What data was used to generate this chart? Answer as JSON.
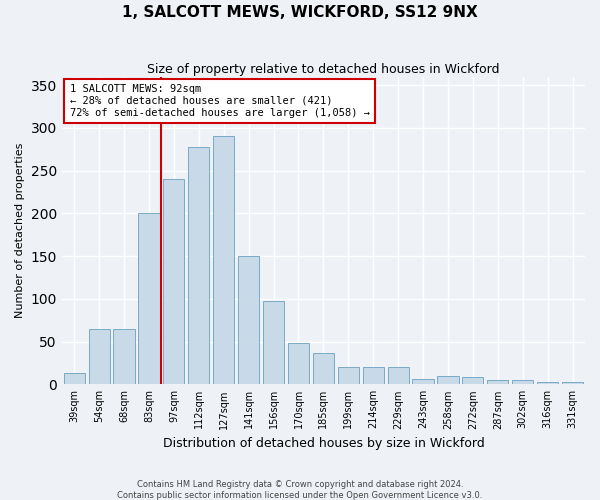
{
  "title": "1, SALCOTT MEWS, WICKFORD, SS12 9NX",
  "subtitle": "Size of property relative to detached houses in Wickford",
  "xlabel": "Distribution of detached houses by size in Wickford",
  "ylabel": "Number of detached properties",
  "categories": [
    "39sqm",
    "54sqm",
    "68sqm",
    "83sqm",
    "97sqm",
    "112sqm",
    "127sqm",
    "141sqm",
    "156sqm",
    "170sqm",
    "185sqm",
    "199sqm",
    "214sqm",
    "229sqm",
    "243sqm",
    "258sqm",
    "272sqm",
    "287sqm",
    "302sqm",
    "316sqm",
    "331sqm"
  ],
  "values": [
    13,
    65,
    65,
    200,
    240,
    278,
    290,
    150,
    98,
    48,
    37,
    20,
    20,
    20,
    6,
    10,
    9,
    5,
    5,
    3,
    3
  ],
  "bar_color": "#c8d9e8",
  "bar_edge_color": "#7aaac8",
  "annotation_line_label": "1 SALCOTT MEWS: 92sqm",
  "annotation_text_line2": "← 28% of detached houses are smaller (421)",
  "annotation_text_line3": "72% of semi-detached houses are larger (1,058) →",
  "vline_color": "#cc0000",
  "background_color": "#eef2f7",
  "grid_color": "#ffffff",
  "footer_line1": "Contains HM Land Registry data © Crown copyright and database right 2024.",
  "footer_line2": "Contains public sector information licensed under the Open Government Licence v3.0.",
  "ylim": [
    0,
    360
  ],
  "vline_x": 3.5
}
